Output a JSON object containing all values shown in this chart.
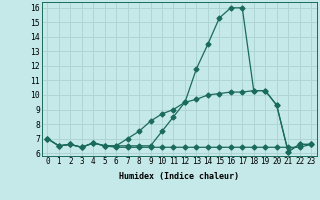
{
  "xlabel": "Humidex (Indice chaleur)",
  "bg_color": "#c5e8e8",
  "grid_color": "#aed4d4",
  "line_color": "#1a6b5a",
  "xlim": [
    -0.5,
    23.5
  ],
  "ylim": [
    5.8,
    16.4
  ],
  "xticks": [
    0,
    1,
    2,
    3,
    4,
    5,
    6,
    7,
    8,
    9,
    10,
    11,
    12,
    13,
    14,
    15,
    16,
    17,
    18,
    19,
    20,
    21,
    22,
    23
  ],
  "yticks": [
    6,
    7,
    8,
    9,
    10,
    11,
    12,
    13,
    14,
    15,
    16
  ],
  "series1_x": [
    0,
    1,
    2,
    3,
    4,
    5,
    6,
    7,
    8,
    9,
    10,
    11,
    12,
    13,
    14,
    15,
    16,
    17,
    18,
    19,
    20,
    21,
    22,
    23
  ],
  "series1_y": [
    7.0,
    6.5,
    6.6,
    6.4,
    6.7,
    6.5,
    6.5,
    6.5,
    6.5,
    6.5,
    7.5,
    8.5,
    9.5,
    11.8,
    13.5,
    15.3,
    16.0,
    16.0,
    10.3,
    10.3,
    9.3,
    6.1,
    6.6,
    6.6
  ],
  "series2_x": [
    0,
    1,
    2,
    3,
    4,
    5,
    6,
    7,
    8,
    9,
    10,
    11,
    12,
    13,
    14,
    15,
    16,
    17,
    18,
    19,
    20,
    21,
    22,
    23
  ],
  "series2_y": [
    7.0,
    6.5,
    6.6,
    6.4,
    6.7,
    6.5,
    6.4,
    6.4,
    6.4,
    6.4,
    6.4,
    6.4,
    6.4,
    6.4,
    6.4,
    6.4,
    6.4,
    6.4,
    6.4,
    6.4,
    6.4,
    6.4,
    6.4,
    6.6
  ],
  "series3_x": [
    0,
    1,
    2,
    3,
    4,
    5,
    6,
    7,
    8,
    9,
    10,
    11,
    12,
    13,
    14,
    15,
    16,
    17,
    18,
    19,
    20,
    21,
    22,
    23
  ],
  "series3_y": [
    7.0,
    6.5,
    6.6,
    6.4,
    6.7,
    6.5,
    6.5,
    7.0,
    7.5,
    8.2,
    8.7,
    9.0,
    9.5,
    9.7,
    10.0,
    10.1,
    10.2,
    10.2,
    10.3,
    10.3,
    9.3,
    6.1,
    6.6,
    6.6
  ],
  "marker_size": 2.5,
  "linewidth": 0.9,
  "xlabel_fontsize": 6.0,
  "tick_fontsize": 5.5,
  "ytick_fontsize": 5.8
}
